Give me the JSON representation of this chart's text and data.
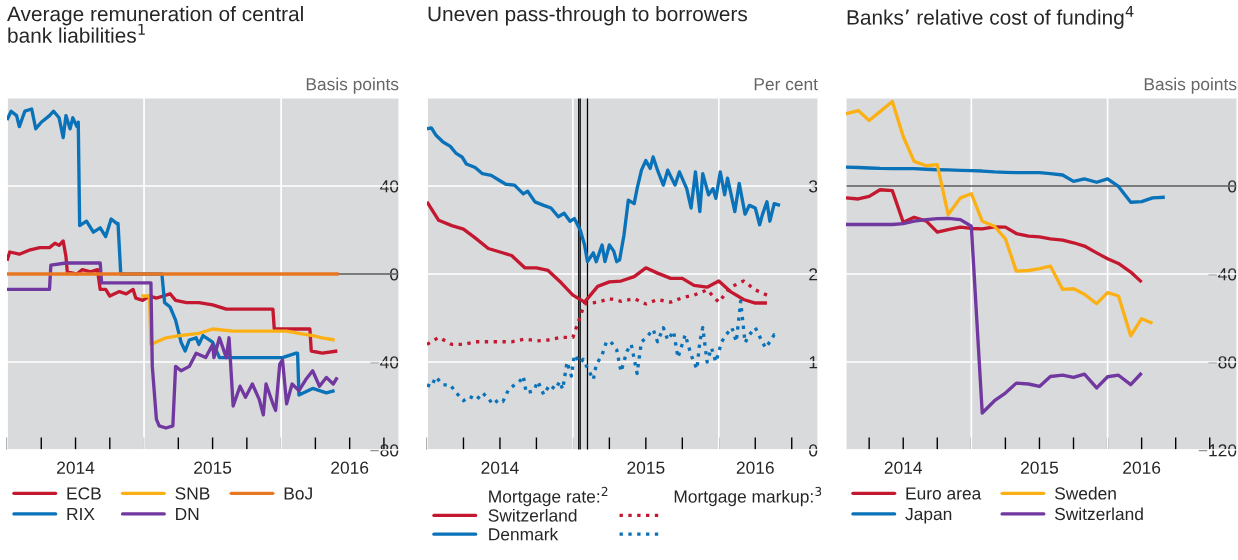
{
  "chart_data": [
    {
      "type": "line",
      "title": "Average remuneration of central\nbank liabilities$^{1}$",
      "ylabel": "Basis points",
      "xlim": [
        2014.0,
        2016.86
      ],
      "ylim": [
        -80,
        80
      ],
      "xticks": [
        {
          "value": 2014.0,
          "label": null
        },
        {
          "value": 2014.25,
          "label": null
        },
        {
          "value": 2014.5,
          "label": "2014"
        },
        {
          "value": 2014.75,
          "label": null
        },
        {
          "value": 2015.0,
          "label": null
        },
        {
          "value": 2015.25,
          "label": null
        },
        {
          "value": 2015.5,
          "label": "2015"
        },
        {
          "value": 2015.75,
          "label": null
        },
        {
          "value": 2016.0,
          "label": null
        },
        {
          "value": 2016.25,
          "label": null
        },
        {
          "value": 2016.5,
          "label": "2016"
        },
        {
          "value": 2016.75,
          "label": null
        }
      ],
      "yticks": [
        {
          "value": -80,
          "label": "−80"
        },
        {
          "value": -40,
          "label": "−40"
        },
        0,
        40
      ],
      "grid": true,
      "legend": "bottom",
      "ref_lines": [
        {
          "axis": "y",
          "value": 0,
          "color": "#000000"
        }
      ],
      "series": [
        {
          "name": "ECB",
          "color": "#c3182f",
          "x": [
            2014.0,
            2014.02,
            2014.09,
            2014.17,
            2014.24,
            2014.31,
            2014.35,
            2014.38,
            2014.41,
            2014.43,
            2014.44,
            2014.51,
            2014.55,
            2014.61,
            2014.66,
            2014.68,
            2014.72,
            2014.75,
            2014.82,
            2014.87,
            2014.92,
            2014.94,
            2014.99,
            2015.04,
            2015.09,
            2015.14,
            2015.19,
            2015.23,
            2015.31,
            2015.4,
            2015.5,
            2015.6,
            2015.7,
            2015.79,
            2015.89,
            2015.94,
            2015.95,
            2016.04,
            2016.13,
            2016.21,
            2016.22,
            2016.3,
            2016.41
          ],
          "values": [
            6,
            10,
            9,
            11,
            12,
            12,
            14,
            13,
            15,
            8,
            1,
            0,
            2,
            1,
            2,
            -7,
            -7,
            -10,
            -8,
            -9,
            -7,
            -11,
            -12,
            -10,
            -11,
            -10,
            -9,
            -12,
            -13,
            -13,
            -14,
            -16,
            -16,
            -16,
            -16,
            -16,
            -25,
            -25,
            -25,
            -25,
            -35,
            -36,
            -35
          ]
        },
        {
          "name": "RIX",
          "color": "#0a72b8",
          "x": [
            2014.0,
            2014.03,
            2014.07,
            2014.09,
            2014.13,
            2014.18,
            2014.21,
            2014.25,
            2014.31,
            2014.34,
            2014.38,
            2014.41,
            2014.43,
            2014.46,
            2014.48,
            2014.51,
            2014.52,
            2014.53,
            2014.58,
            2014.63,
            2014.68,
            2014.72,
            2014.76,
            2014.8,
            2014.81,
            2014.83,
            2015.13,
            2015.15,
            2015.19,
            2015.23,
            2015.27,
            2015.3,
            2015.33,
            2015.38,
            2015.4,
            2015.43,
            2015.5,
            2015.55,
            2015.65,
            2015.74,
            2015.89,
            2016.01,
            2016.11,
            2016.12,
            2016.13,
            2016.23,
            2016.33,
            2016.39
          ],
          "values": [
            70,
            74,
            72,
            67,
            74,
            75,
            66,
            69,
            72,
            74,
            71,
            62,
            72,
            66,
            71,
            67,
            69,
            22,
            24,
            19,
            21,
            17,
            25,
            23,
            23,
            0,
            0,
            -13,
            -15,
            -21,
            -31,
            -35,
            -30,
            -29,
            -32,
            -28,
            -31,
            -38,
            -38,
            -38,
            -38,
            -38,
            -36,
            -36,
            -55,
            -52,
            -54,
            -53
          ]
        },
        {
          "name": "SNB",
          "color": "#fbb116",
          "x": [
            2014.98,
            2015.04,
            2015.05,
            2015.16,
            2015.26,
            2015.4,
            2015.5,
            2015.65,
            2015.79,
            2015.94,
            2016.04,
            2016.13,
            2016.23,
            2016.3,
            2016.39
          ],
          "values": [
            -10,
            -10,
            -32,
            -29,
            -28,
            -27,
            -25,
            -26,
            -26,
            -26,
            -26,
            -27,
            -28,
            -29,
            -30
          ]
        },
        {
          "name": "DN",
          "color": "#7138a0",
          "x": [
            2014.0,
            2014.31,
            2014.32,
            2014.43,
            2014.55,
            2014.68,
            2014.69,
            2014.8,
            2014.92,
            2015.05,
            2015.06,
            2015.09,
            2015.11,
            2015.16,
            2015.21,
            2015.23,
            2015.27,
            2015.33,
            2015.38,
            2015.45,
            2015.5,
            2015.51,
            2015.55,
            2015.6,
            2015.62,
            2015.65,
            2015.7,
            2015.74,
            2015.79,
            2015.84,
            2015.87,
            2015.89,
            2015.94,
            2015.96,
            2015.99,
            2016.01,
            2016.04,
            2016.08,
            2016.13,
            2016.18,
            2016.23,
            2016.28,
            2016.33,
            2016.38,
            2016.41
          ],
          "values": [
            -7,
            -7,
            4,
            5,
            5,
            5,
            -4,
            -4,
            -4,
            -4,
            -42,
            -66,
            -69,
            -70,
            -69,
            -42,
            -44,
            -42,
            -36,
            -38,
            -32,
            -38,
            -29,
            -38,
            -29,
            -60,
            -51,
            -56,
            -50,
            -57,
            -64,
            -50,
            -59,
            -62,
            -41,
            -39,
            -59,
            -50,
            -53,
            -48,
            -44,
            -51,
            -47,
            -50,
            -47
          ]
        },
        {
          "name": "BoJ",
          "color": "#e87722",
          "x": [
            2014.0,
            2016.42
          ],
          "values": [
            0,
            0
          ]
        }
      ]
    },
    {
      "type": "line",
      "title": "Uneven pass-through to borrowers",
      "ylabel": "Per cent",
      "xlim": [
        2014.0,
        2016.68
      ],
      "ylim": [
        0,
        4
      ],
      "xticks": [
        {
          "value": 2014.0,
          "label": null
        },
        {
          "value": 2014.25,
          "label": null
        },
        {
          "value": 2014.5,
          "label": "2014"
        },
        {
          "value": 2014.75,
          "label": null
        },
        {
          "value": 2015.0,
          "label": null
        },
        {
          "value": 2015.25,
          "label": null
        },
        {
          "value": 2015.5,
          "label": "2015"
        },
        {
          "value": 2015.75,
          "label": null
        },
        {
          "value": 2016.0,
          "label": null
        },
        {
          "value": 2016.25,
          "label": "2016"
        },
        {
          "value": 2016.5,
          "label": null
        }
      ],
      "yticks": [
        0,
        1,
        2,
        3
      ],
      "grid": true,
      "legend": "bottom",
      "legend_title": [
        "Mortgage rate:$^{2}$",
        "Mortgage markup:$^{3}$"
      ],
      "ref_lines": [
        {
          "axis": "x",
          "value": 2015.04,
          "color": "#000000"
        },
        {
          "axis": "x",
          "value": 2015.05,
          "color": "#000000"
        },
        {
          "axis": "x",
          "value": 2015.1,
          "color": "#000000"
        }
      ],
      "x": [
        2014.0,
        2014.08,
        2014.17,
        2014.25,
        2014.33,
        2014.42,
        2014.5,
        2014.58,
        2014.67,
        2014.75,
        2014.83,
        2014.92,
        2015.0,
        2015.08,
        2015.17,
        2015.25,
        2015.33,
        2015.42,
        2015.5,
        2015.58,
        2015.67,
        2015.75,
        2015.83,
        2015.92,
        2016.0,
        2016.08,
        2016.17,
        2016.25,
        2016.33
      ],
      "series": [
        {
          "name": "Switzerland",
          "color": "#c3182f",
          "line_style": "solid",
          "values": [
            2.82,
            2.61,
            2.55,
            2.51,
            2.41,
            2.29,
            2.25,
            2.21,
            2.07,
            2.07,
            2.04,
            1.9,
            1.76,
            1.68,
            1.86,
            1.91,
            1.92,
            1.97,
            2.07,
            2.01,
            1.95,
            1.95,
            1.87,
            1.85,
            1.92,
            1.8,
            1.71,
            1.67,
            1.67
          ]
        },
        {
          "name": "Denmark",
          "color": "#0a72b8",
          "line_style": "solid",
          "x": [
            2014.0,
            2014.03,
            2014.06,
            2014.11,
            2014.16,
            2014.2,
            2014.24,
            2014.27,
            2014.33,
            2014.38,
            2014.44,
            2014.5,
            2014.54,
            2014.6,
            2014.66,
            2014.69,
            2014.74,
            2014.8,
            2014.85,
            2014.9,
            2014.94,
            2014.98,
            2015.01,
            2015.05,
            2015.08,
            2015.1,
            2015.14,
            2015.16,
            2015.2,
            2015.22,
            2015.25,
            2015.28,
            2015.3,
            2015.32,
            2015.35,
            2015.38,
            2015.42,
            2015.44,
            2015.47,
            2015.5,
            2015.53,
            2015.55,
            2015.58,
            2015.62,
            2015.65,
            2015.7,
            2015.73,
            2015.78,
            2015.81,
            2015.84,
            2015.87,
            2015.89,
            2015.93,
            2015.96,
            2015.98,
            2016.01,
            2016.04,
            2016.06,
            2016.11,
            2016.14,
            2016.18,
            2016.21,
            2016.25,
            2016.28,
            2016.3,
            2016.33,
            2016.35,
            2016.38,
            2016.42
          ],
          "values": [
            3.65,
            3.66,
            3.58,
            3.5,
            3.45,
            3.37,
            3.33,
            3.25,
            3.21,
            3.14,
            3.12,
            3.06,
            3.02,
            3.01,
            2.91,
            2.94,
            2.82,
            2.78,
            2.75,
            2.65,
            2.69,
            2.6,
            2.63,
            2.5,
            2.33,
            2.14,
            2.24,
            2.14,
            2.33,
            2.14,
            2.33,
            2.26,
            2.14,
            2.16,
            2.44,
            2.84,
            2.8,
            2.97,
            3.18,
            3.29,
            3.2,
            3.33,
            3.18,
            3.01,
            3.18,
            3.01,
            3.16,
            2.97,
            2.75,
            3.16,
            2.71,
            3.14,
            2.9,
            2.97,
            2.86,
            3.16,
            2.9,
            3.09,
            2.71,
            3.03,
            2.68,
            2.78,
            2.75,
            2.56,
            2.68,
            2.82,
            2.6,
            2.8,
            2.78
          ]
        },
        {
          "color": "#c3182f",
          "line_style": "dotted",
          "values": [
            1.2,
            1.28,
            1.2,
            1.2,
            1.23,
            1.23,
            1.23,
            1.23,
            1.26,
            1.24,
            1.25,
            1.28,
            1.28,
            1.66,
            1.68,
            1.72,
            1.69,
            1.72,
            1.66,
            1.71,
            1.68,
            1.73,
            1.76,
            1.82,
            1.68,
            1.85,
            1.92,
            1.82,
            1.76
          ]
        },
        {
          "color": "#0a72b8",
          "line_style": "dotted",
          "x": [
            2014.0,
            2014.03,
            2014.06,
            2014.11,
            2014.16,
            2014.2,
            2014.25,
            2014.29,
            2014.34,
            2014.38,
            2014.42,
            2014.45,
            2014.49,
            2014.52,
            2014.56,
            2014.6,
            2014.64,
            2014.66,
            2014.68,
            2014.73,
            2014.76,
            2014.8,
            2014.84,
            2014.88,
            2014.91,
            2014.93,
            2014.96,
            2014.99,
            2015.01,
            2015.05,
            2015.07,
            2015.1,
            2015.14,
            2015.16,
            2015.2,
            2015.23,
            2015.26,
            2015.3,
            2015.33,
            2015.37,
            2015.4,
            2015.44,
            2015.47,
            2015.5,
            2015.55,
            2015.58,
            2015.62,
            2015.65,
            2015.69,
            2015.72,
            2015.77,
            2015.81,
            2015.85,
            2015.87,
            2015.89,
            2015.92,
            2015.95,
            2015.98,
            2016.02,
            2016.05,
            2016.09,
            2016.12,
            2016.15,
            2016.18,
            2016.21,
            2016.25,
            2016.28,
            2016.32,
            2016.35,
            2016.38,
            2016.41
          ],
          "values": [
            0.74,
            0.72,
            0.83,
            0.74,
            0.74,
            0.65,
            0.56,
            0.61,
            0.57,
            0.65,
            0.59,
            0.52,
            0.57,
            0.55,
            0.69,
            0.74,
            0.79,
            0.84,
            0.65,
            0.67,
            0.78,
            0.63,
            0.74,
            0.69,
            0.78,
            0.69,
            1.0,
            0.84,
            1.08,
            0.99,
            1.03,
            0.93,
            0.8,
            0.97,
            1.08,
            1.23,
            1.23,
            1.14,
            0.89,
            1.12,
            1.2,
            0.87,
            1.23,
            1.27,
            1.37,
            1.23,
            1.39,
            1.25,
            1.35,
            1.05,
            1.31,
            1.08,
            0.92,
            1.23,
            1.39,
            1.0,
            1.16,
            1.0,
            1.23,
            1.31,
            1.39,
            1.23,
            1.69,
            1.22,
            1.31,
            1.39,
            1.29,
            1.16,
            1.23,
            1.31,
            1.29
          ]
        }
      ]
    },
    {
      "type": "line",
      "title": "Banks’ relative cost of funding$^{4}$",
      "ylabel": "Basis points",
      "xlim": [
        2014.08,
        2016.95
      ],
      "ylim": [
        -120,
        40
      ],
      "xticks": [
        {
          "value": 2014.25,
          "label": null
        },
        {
          "value": 2014.5,
          "label": "2014"
        },
        {
          "value": 2014.75,
          "label": null
        },
        {
          "value": 2015.0,
          "label": null
        },
        {
          "value": 2015.25,
          "label": null
        },
        {
          "value": 2015.5,
          "label": "2015"
        },
        {
          "value": 2015.75,
          "label": null
        },
        {
          "value": 2016.0,
          "label": null
        },
        {
          "value": 2016.25,
          "label": "2016"
        },
        {
          "value": 2016.5,
          "label": null
        },
        {
          "value": 2016.75,
          "label": null
        }
      ],
      "yticks": [
        {
          "value": -120,
          "label": "−120"
        },
        {
          "value": -80,
          "label": "−80"
        },
        {
          "value": -40,
          "label": "−40"
        },
        0
      ],
      "grid": true,
      "legend": "bottom",
      "ref_lines": [
        {
          "axis": "y",
          "value": 0,
          "color": "#000000"
        }
      ],
      "x": [
        2014.08,
        2014.17,
        2014.25,
        2014.33,
        2014.42,
        2014.5,
        2014.58,
        2014.67,
        2014.75,
        2014.83,
        2014.92,
        2015.0,
        2015.08,
        2015.17,
        2015.25,
        2015.33,
        2015.42,
        2015.5,
        2015.58,
        2015.67,
        2015.75,
        2015.83,
        2015.92,
        2016.0,
        2016.08,
        2016.17,
        2016.25,
        2016.33,
        2016.42
      ],
      "series": [
        {
          "name": "Euro area",
          "color": "#c3182f",
          "values": [
            -5.4,
            -5.9,
            -4.7,
            -1.7,
            -2.1,
            -16.5,
            -14.2,
            -16.0,
            -21.0,
            -19.8,
            -18.7,
            -19.3,
            -19.5,
            -18.6,
            -18.7,
            -21.6,
            -22.8,
            -23.1,
            -24.0,
            -24.6,
            -25.8,
            -27.3,
            -30.4,
            -33.1,
            -35.2,
            -39.1,
            -43.7,
            null,
            null
          ]
        },
        {
          "name": "Japan",
          "color": "#0a72b8",
          "values": [
            8.6,
            8.4,
            8.2,
            8.0,
            7.9,
            7.9,
            7.9,
            7.6,
            7.4,
            7.3,
            7.1,
            7.0,
            6.8,
            6.4,
            6.2,
            6.1,
            6.1,
            6.1,
            5.6,
            5.0,
            2.1,
            3.2,
            1.7,
            3.2,
            -0.2,
            -7.4,
            -7.1,
            -5.4,
            -5.1
          ]
        },
        {
          "name": "Sweden",
          "color": "#fbb116",
          "values": [
            32.8,
            34.3,
            29.8,
            33.8,
            38.4,
            22.5,
            11.2,
            9.2,
            9.7,
            -13.0,
            -5.4,
            -3.5,
            -16.0,
            -18.3,
            -24.0,
            -38.7,
            -38.4,
            -37.6,
            -36.4,
            -47.0,
            -46.7,
            -49.2,
            -53.5,
            -48.5,
            -50.0,
            -68.1,
            -60.3,
            -62.4,
            null
          ]
        },
        {
          "name": "Switzerland",
          "color": "#7138a0",
          "values": [
            -17.5,
            -17.5,
            -17.5,
            -17.5,
            -17.5,
            -17.1,
            -16.0,
            -15.3,
            -14.8,
            -14.7,
            -15.3,
            -18.3,
            -103.2,
            -97.6,
            -94.1,
            -89.6,
            -90.0,
            -91.1,
            -86.6,
            -86.0,
            -87.0,
            -85.5,
            -91.8,
            -86.7,
            -86.0,
            -90.3,
            -85.0,
            null,
            null
          ]
        }
      ]
    }
  ]
}
